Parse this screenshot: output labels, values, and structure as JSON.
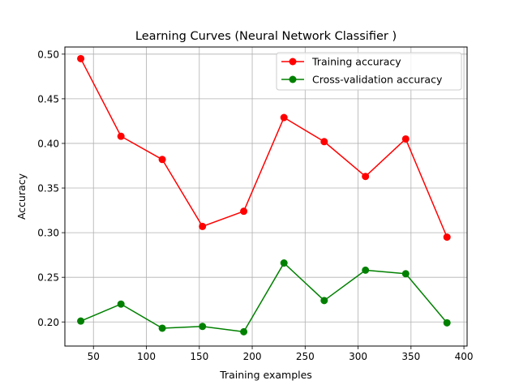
{
  "chart_data": {
    "type": "line",
    "title": "Learning Curves (Neural Network Classifier )",
    "xlabel": "Training examples",
    "ylabel": "Accuracy",
    "xlim": [
      23,
      403
    ],
    "ylim": [
      0.173,
      0.508
    ],
    "x": [
      38,
      76,
      115,
      153,
      192,
      230,
      268,
      307,
      345,
      384
    ],
    "xticks": [
      50,
      100,
      150,
      200,
      250,
      300,
      350,
      400
    ],
    "yticks": [
      0.2,
      0.25,
      0.3,
      0.35,
      0.4,
      0.45,
      0.5
    ],
    "xtick_labels": [
      "50",
      "100",
      "150",
      "200",
      "250",
      "300",
      "350",
      "400"
    ],
    "ytick_labels": [
      "0.20",
      "0.25",
      "0.30",
      "0.35",
      "0.40",
      "0.45",
      "0.50"
    ],
    "grid": true,
    "legend_position": "top-right",
    "series": [
      {
        "name": "Training accuracy",
        "color": "#ff0000",
        "values": [
          0.495,
          0.408,
          0.382,
          0.307,
          0.324,
          0.429,
          0.402,
          0.363,
          0.405,
          0.295
        ]
      },
      {
        "name": "Cross-validation accuracy",
        "color": "#008000",
        "values": [
          0.201,
          0.22,
          0.193,
          0.195,
          0.189,
          0.266,
          0.224,
          0.258,
          0.254,
          0.199
        ]
      }
    ]
  }
}
